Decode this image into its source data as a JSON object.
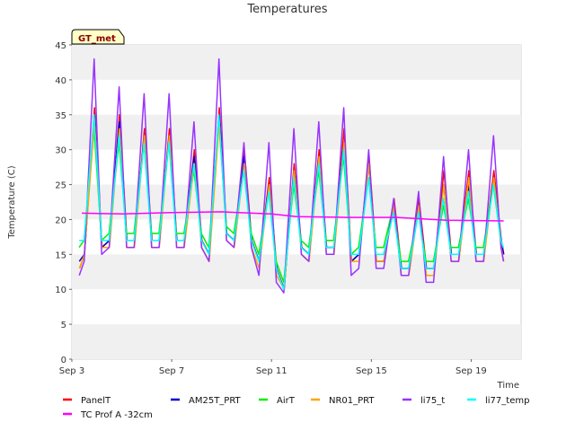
{
  "chart_data": {
    "type": "line",
    "title": "Temperatures",
    "xlabel": "Time",
    "ylabel": "Temperature (C)",
    "ylim": [
      0,
      45
    ],
    "xlim": [
      3,
      21.0
    ],
    "yticks": [
      0,
      5,
      10,
      15,
      20,
      25,
      30,
      35,
      40,
      45
    ],
    "xticks": [
      {
        "value": 3,
        "label": "Sep 3"
      },
      {
        "value": 7,
        "label": "Sep 7"
      },
      {
        "value": 11,
        "label": "Sep 11"
      },
      {
        "value": 15,
        "label": "Sep 15"
      },
      {
        "value": 19,
        "label": "Sep 19"
      }
    ],
    "grid": "horizontal alternating bands",
    "legend_position": "bottom",
    "badge": "GT_met",
    "series": [
      {
        "name": "PanelT",
        "color": "#ff0000",
        "offset": 0.4,
        "x": [
          3.3,
          3.5,
          3.9,
          4.2,
          4.5,
          4.9,
          5.2,
          5.5,
          5.9,
          6.2,
          6.5,
          6.9,
          7.2,
          7.5,
          7.9,
          8.2,
          8.5,
          8.9,
          9.2,
          9.5,
          9.9,
          10.2,
          10.5,
          10.9,
          11.2,
          11.5,
          11.9,
          12.2,
          12.5,
          12.9,
          13.2,
          13.5,
          13.9,
          14.2,
          14.5,
          14.9,
          15.2,
          15.5,
          15.9,
          16.2,
          16.5,
          16.9,
          17.2,
          17.5,
          17.9,
          18.2,
          18.5,
          18.9,
          19.2,
          19.5,
          19.9,
          20.2,
          20.3
        ],
        "y": [
          13,
          15,
          36,
          16,
          17,
          35,
          17,
          17,
          33,
          17,
          17,
          33,
          17,
          17,
          30,
          17,
          15,
          36,
          18,
          17,
          30,
          17,
          14,
          26,
          13,
          10,
          28,
          16,
          15,
          30,
          16,
          16,
          33,
          14,
          15,
          29,
          14,
          14,
          23,
          13,
          13,
          23,
          13,
          13,
          27,
          15,
          15,
          27,
          15,
          15,
          27,
          17,
          15
        ]
      },
      {
        "name": "AM25T_PRT",
        "color": "#0000cc",
        "offset": 0.0,
        "x": [
          3.3,
          3.5,
          3.9,
          4.2,
          4.5,
          4.9,
          5.2,
          5.5,
          5.9,
          6.2,
          6.5,
          6.9,
          7.2,
          7.5,
          7.9,
          8.2,
          8.5,
          8.9,
          9.2,
          9.5,
          9.9,
          10.2,
          10.5,
          10.9,
          11.2,
          11.5,
          11.9,
          12.2,
          12.5,
          12.9,
          13.2,
          13.5,
          13.9,
          14.2,
          14.5,
          14.9,
          15.2,
          15.5,
          15.9,
          16.2,
          16.5,
          16.9,
          17.2,
          17.5,
          17.9,
          18.2,
          18.5,
          18.9,
          19.2,
          19.5,
          19.9,
          20.2,
          20.3
        ],
        "y": [
          14,
          15,
          35,
          16,
          17,
          34,
          17,
          17,
          32,
          17,
          17,
          32,
          17,
          17,
          29,
          17,
          15,
          35,
          18,
          17,
          29,
          17,
          14,
          25,
          13,
          10,
          27,
          16,
          15,
          29,
          16,
          16,
          31,
          14,
          15,
          28,
          14,
          14,
          22,
          13,
          13,
          22,
          13,
          13,
          25,
          15,
          15,
          25,
          15,
          15,
          26,
          17,
          15
        ]
      },
      {
        "name": "AirT",
        "color": "#00ee00",
        "offset": -0.6,
        "x": [
          3.3,
          3.5,
          3.9,
          4.2,
          4.5,
          4.9,
          5.2,
          5.5,
          5.9,
          6.2,
          6.5,
          6.9,
          7.2,
          7.5,
          7.9,
          8.2,
          8.5,
          8.9,
          9.2,
          9.5,
          9.9,
          10.2,
          10.5,
          10.9,
          11.2,
          11.5,
          11.9,
          12.2,
          12.5,
          12.9,
          13.2,
          13.5,
          13.9,
          14.2,
          14.5,
          14.9,
          15.2,
          15.5,
          15.9,
          16.2,
          16.5,
          16.9,
          17.2,
          17.5,
          17.9,
          18.2,
          18.5,
          18.9,
          19.2,
          19.5,
          19.9,
          20.2,
          20.3
        ],
        "y": [
          16,
          17,
          33,
          17,
          18,
          31,
          18,
          18,
          31,
          18,
          18,
          31,
          18,
          18,
          27,
          18,
          16,
          34,
          19,
          18,
          27,
          18,
          15,
          24,
          14,
          11,
          25,
          17,
          16,
          27,
          17,
          17,
          29,
          15,
          16,
          26,
          16,
          16,
          22,
          14,
          14,
          21,
          14,
          14,
          22,
          16,
          16,
          23,
          16,
          16,
          25,
          17,
          16
        ]
      },
      {
        "name": "NR01_PRT",
        "color": "#ffa500",
        "offset": 0.2,
        "x": [
          3.3,
          3.5,
          3.9,
          4.2,
          4.5,
          4.9,
          5.2,
          5.5,
          5.9,
          6.2,
          6.5,
          6.9,
          7.2,
          7.5,
          7.9,
          8.2,
          8.5,
          8.9,
          9.2,
          9.5,
          9.9,
          10.2,
          10.5,
          10.9,
          11.2,
          11.5,
          11.9,
          12.2,
          12.5,
          12.9,
          13.2,
          13.5,
          13.9,
          14.2,
          14.5,
          14.9,
          15.2,
          15.5,
          15.9,
          16.2,
          16.5,
          16.9,
          17.2,
          17.5,
          17.9,
          18.2,
          18.5,
          18.9,
          19.2,
          19.5,
          19.9,
          20.2,
          20.3
        ],
        "y": [
          13,
          15,
          34,
          16,
          16,
          33,
          16,
          16,
          32,
          16,
          16,
          32,
          16,
          16,
          28,
          16,
          14,
          34,
          17,
          16,
          28,
          16,
          13,
          25,
          12,
          10,
          27,
          15,
          14,
          29,
          15,
          15,
          31,
          14,
          14,
          28,
          14,
          14,
          22,
          12,
          12,
          22,
          12,
          12,
          25,
          14,
          14,
          26,
          14,
          14,
          26,
          16,
          14
        ]
      },
      {
        "name": "li75_t",
        "color": "#9933ff",
        "offset": -0.3,
        "x": [
          3.3,
          3.5,
          3.9,
          4.2,
          4.5,
          4.9,
          5.2,
          5.5,
          5.9,
          6.2,
          6.5,
          6.9,
          7.2,
          7.5,
          7.9,
          8.2,
          8.5,
          8.9,
          9.2,
          9.5,
          9.9,
          10.2,
          10.5,
          10.9,
          11.2,
          11.5,
          11.9,
          12.2,
          12.5,
          12.9,
          13.2,
          13.5,
          13.9,
          14.2,
          14.5,
          14.9,
          15.2,
          15.5,
          15.9,
          16.2,
          16.5,
          16.9,
          17.2,
          17.5,
          17.9,
          18.2,
          18.5,
          18.9,
          19.2,
          19.5,
          19.9,
          20.2,
          20.3
        ],
        "y": [
          12,
          14,
          43,
          15,
          16,
          39,
          16,
          16,
          38,
          16,
          16,
          38,
          16,
          16,
          34,
          16,
          14,
          43,
          17,
          16,
          31,
          16,
          12,
          31,
          11,
          9.5,
          33,
          15,
          14,
          34,
          15,
          15,
          36,
          12,
          13,
          30,
          13,
          13,
          23,
          12,
          12,
          24,
          11,
          11,
          29,
          14,
          14,
          30,
          14,
          14,
          32,
          16,
          14
        ]
      },
      {
        "name": "li77_temp",
        "color": "#00ffff",
        "offset": -0.5,
        "x": [
          3.3,
          3.5,
          3.9,
          4.2,
          4.5,
          4.9,
          5.2,
          5.5,
          5.9,
          6.2,
          6.5,
          6.9,
          7.2,
          7.5,
          7.9,
          8.2,
          8.5,
          8.9,
          9.2,
          9.5,
          9.9,
          10.2,
          10.5,
          10.9,
          11.2,
          11.5,
          11.9,
          12.2,
          12.5,
          12.9,
          13.2,
          13.5,
          13.9,
          14.2,
          14.5,
          14.9,
          15.2,
          15.5,
          15.9,
          16.2,
          16.5,
          16.9,
          17.2,
          17.5,
          17.9,
          18.2,
          18.5,
          18.9,
          19.2,
          19.5,
          19.9,
          20.2,
          20.3
        ],
        "y": [
          17,
          17,
          35,
          17,
          17,
          32,
          17,
          17,
          31,
          17,
          17,
          31,
          17,
          17,
          28,
          17,
          15,
          35,
          18,
          17,
          27,
          17,
          14,
          24,
          13,
          10,
          26,
          16,
          15,
          28,
          16,
          16,
          30,
          15,
          15,
          26,
          15,
          15,
          21,
          13,
          13,
          21,
          13,
          13,
          23,
          15,
          15,
          24,
          15,
          15,
          25,
          17,
          16
        ]
      },
      {
        "name": "TC Prof A -32cm",
        "color": "#ff00ff",
        "offset": 0.0,
        "x": [
          3.4,
          5,
          7,
          9,
          11,
          12,
          14,
          16,
          18,
          20.3
        ],
        "y": [
          20.9,
          20.8,
          21.0,
          21.1,
          20.8,
          20.4,
          20.3,
          20.3,
          19.9,
          19.8
        ]
      }
    ]
  }
}
